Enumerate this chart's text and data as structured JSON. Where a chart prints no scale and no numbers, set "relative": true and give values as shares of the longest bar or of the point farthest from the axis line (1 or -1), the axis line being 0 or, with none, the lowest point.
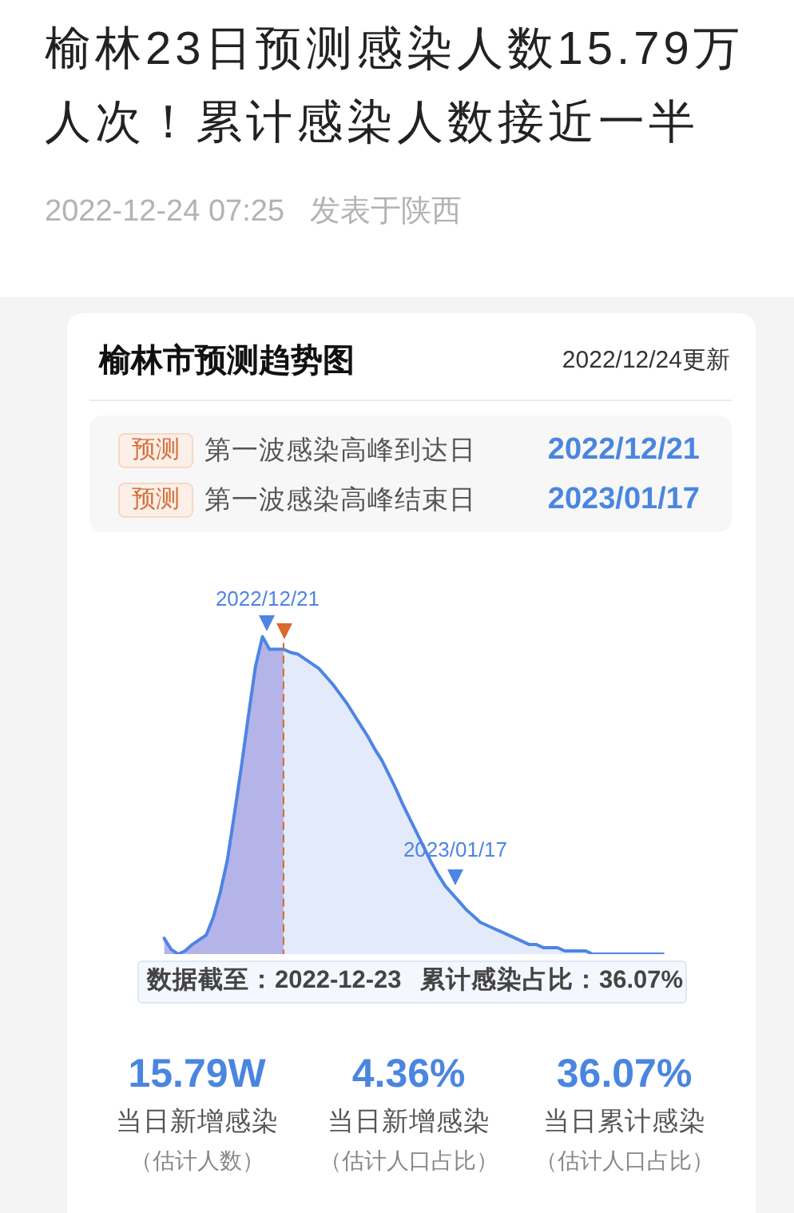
{
  "chart_data": {
    "type": "line",
    "title": "榆林23日预测感染人数15.79万人次！累计感染人数接近一半",
    "subtitle": "榆林市预测趋势图",
    "relative": true,
    "tick_labels": false,
    "categories": [
      null,
      null,
      null,
      null,
      null,
      null,
      null,
      null,
      null,
      null,
      null,
      null,
      null,
      null,
      null,
      null,
      null,
      null,
      null,
      null,
      null,
      null,
      null,
      null,
      null,
      null,
      null,
      null,
      null,
      null,
      null,
      null,
      null,
      null,
      null,
      null,
      null,
      null,
      null,
      null,
      null,
      null,
      null,
      null,
      null,
      null,
      null,
      null,
      null,
      null,
      null,
      null,
      null,
      null,
      null,
      null,
      null,
      null,
      null,
      null,
      null,
      null,
      null,
      null,
      null,
      null,
      null,
      null,
      null,
      null,
      null,
      null
    ],
    "series": [
      {
        "type": "area",
        "color": "#b4b4e8",
        "values": [
          0.05,
          0.015,
          0,
          0.01,
          0.03,
          0.045,
          0.06,
          0.115,
          0.195,
          0.295,
          0.44,
          0.59,
          0.75,
          0.905,
          1,
          0.96,
          0.96,
          0.96,
          null,
          null,
          null,
          null,
          null,
          null,
          null,
          null,
          null,
          null,
          null,
          null,
          null,
          null,
          null,
          null,
          null,
          null,
          null,
          null,
          null,
          null,
          null,
          null,
          null,
          null,
          null,
          null,
          null,
          null,
          null,
          null,
          null,
          null,
          null,
          null,
          null,
          null,
          null,
          null,
          null,
          null,
          null,
          null,
          null,
          null,
          null,
          null,
          null,
          null,
          null,
          null,
          null,
          null
        ]
      },
      {
        "type": "area",
        "color": "#e3ebfa",
        "values": [
          null,
          null,
          null,
          null,
          null,
          null,
          null,
          null,
          null,
          null,
          null,
          null,
          null,
          null,
          null,
          null,
          null,
          0.96,
          0.95,
          0.945,
          0.93,
          0.915,
          0.9,
          0.875,
          0.85,
          0.82,
          0.79,
          0.755,
          0.72,
          0.685,
          0.645,
          0.61,
          0.565,
          0.52,
          0.47,
          0.425,
          0.38,
          0.335,
          0.29,
          0.25,
          0.215,
          0.19,
          0.165,
          0.14,
          0.12,
          0.1,
          0.09,
          0.08,
          0.07,
          0.06,
          0.05,
          0.04,
          0.03,
          0.03,
          0.02,
          0.02,
          0.02,
          0.01,
          0.01,
          0.01,
          0.01,
          0,
          0,
          0,
          0,
          0,
          0,
          0,
          0,
          0,
          0,
          0
        ]
      },
      {
        "color": "#4e84e4",
        "values": [
          0.05,
          0.015,
          0,
          0.01,
          0.03,
          0.045,
          0.06,
          0.115,
          0.195,
          0.295,
          0.44,
          0.59,
          0.75,
          0.905,
          1,
          0.96,
          0.96,
          0.96,
          0.95,
          0.945,
          0.93,
          0.915,
          0.9,
          0.875,
          0.85,
          0.82,
          0.79,
          0.755,
          0.72,
          0.685,
          0.645,
          0.61,
          0.565,
          0.52,
          0.47,
          0.425,
          0.38,
          0.335,
          0.29,
          0.25,
          0.215,
          0.19,
          0.165,
          0.14,
          0.12,
          0.1,
          0.09,
          0.08,
          0.07,
          0.06,
          0.05,
          0.04,
          0.03,
          0.03,
          0.02,
          0.02,
          0.02,
          0.01,
          0.01,
          0.01,
          0.01,
          0,
          0,
          0,
          0,
          0,
          0,
          0,
          0,
          0,
          0,
          0
        ]
      }
    ],
    "annotations": [
      "2022-12-24 07:25",
      "发表于陕西",
      "2022/12/24更新",
      "预测",
      "第一波感染高峰到达日",
      "2022/12/21",
      "预测",
      "第一波感染高峰结束日",
      "2023/01/17",
      "2022/12/21",
      "2023/01/17",
      "数据截至：2022-12-23",
      "累计感染占比：36.07%",
      "15.79W",
      "当日新增感染",
      "（估计人数）",
      "4.36%",
      "当日新增感染",
      "（估计人口占比）",
      "36.07%",
      "当日累计感染",
      "（估计人口占比）"
    ]
  }
}
